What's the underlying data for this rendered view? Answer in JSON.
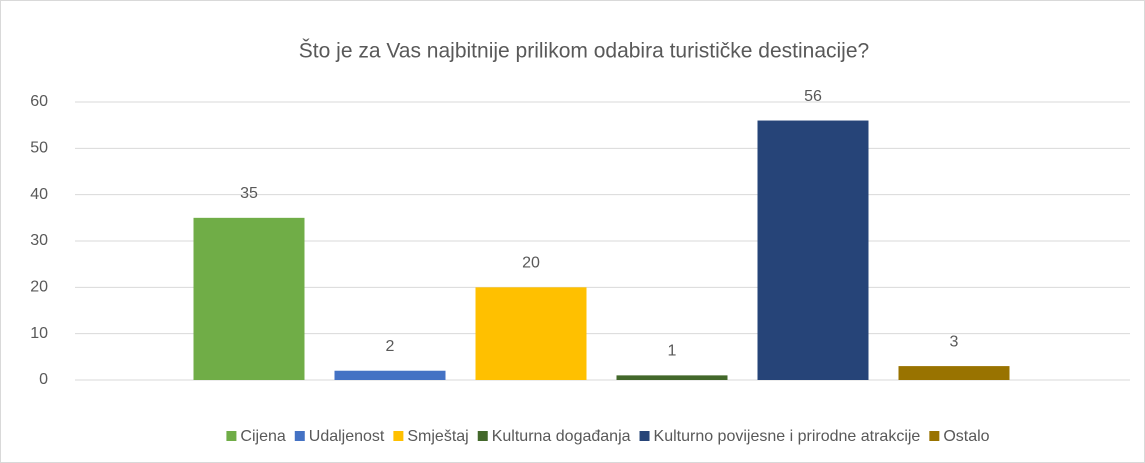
{
  "chart_data": {
    "type": "bar",
    "title": "Što je za Vas najbitnije prilikom odabira turističke destinacije?",
    "categories": [
      null
    ],
    "series": [
      {
        "name": "Cijena",
        "color": "#70ad47",
        "values": [
          35
        ]
      },
      {
        "name": "Udaljenost",
        "color": "#4472c4",
        "values": [
          2
        ]
      },
      {
        "name": "Smještaj",
        "color": "#ffc000",
        "values": [
          20
        ]
      },
      {
        "name": "Kulturna događanja",
        "color": "#43682b",
        "values": [
          1
        ]
      },
      {
        "name": "Kulturno povijesne i prirodne atrakcije",
        "color": "#264478",
        "values": [
          56
        ]
      },
      {
        "name": "Ostalo",
        "color": "#997300",
        "values": [
          3
        ]
      }
    ],
    "ylim": [
      0,
      60
    ],
    "yticks": [
      0,
      10,
      20,
      30,
      40,
      50,
      60
    ],
    "grid": true,
    "data_labels": true,
    "legend": "bottom"
  }
}
